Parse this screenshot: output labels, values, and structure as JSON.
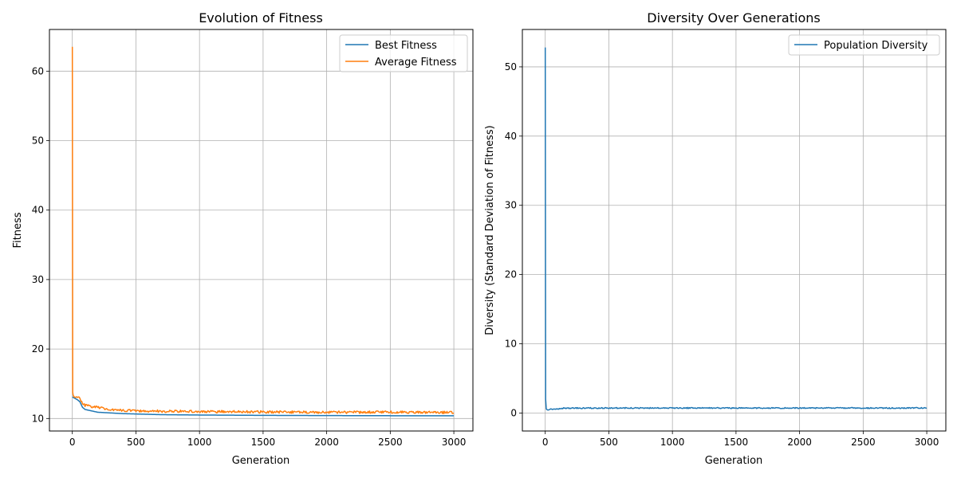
{
  "chart_data": [
    {
      "type": "line",
      "title": "Evolution of Fitness",
      "xlabel": "Generation",
      "ylabel": "Fitness",
      "xlim": [
        -180,
        3150
      ],
      "ylim": [
        8.2,
        66.0
      ],
      "xticks": [
        0,
        500,
        1000,
        1500,
        2000,
        2500,
        3000
      ],
      "yticks": [
        10,
        20,
        30,
        40,
        50,
        60
      ],
      "grid": true,
      "legend_position": "top-right",
      "series": [
        {
          "name": "Best Fitness",
          "color": "#1f77b4",
          "x": [
            0,
            20,
            40,
            60,
            80,
            100,
            150,
            200,
            250,
            300,
            400,
            500,
            700,
            1000,
            1500,
            2000,
            2500,
            3000
          ],
          "y": [
            13.1,
            12.9,
            12.7,
            12.4,
            11.6,
            11.3,
            11.1,
            10.9,
            10.85,
            10.8,
            10.7,
            10.65,
            10.55,
            10.5,
            10.45,
            10.42,
            10.4,
            10.4
          ]
        },
        {
          "name": "Average Fitness",
          "color": "#ff7f0e",
          "x": [
            0,
            3,
            6,
            20,
            40,
            60,
            80,
            100,
            150,
            200,
            250,
            300,
            400,
            500,
            700,
            1000,
            1500,
            2000,
            2500,
            3000
          ],
          "y": [
            63.5,
            13.8,
            13.4,
            13.2,
            13.0,
            12.9,
            12.1,
            11.9,
            11.7,
            11.6,
            11.4,
            11.3,
            11.2,
            11.1,
            11.05,
            11.0,
            10.95,
            10.9,
            10.9,
            10.85
          ],
          "noise": 0.18
        }
      ]
    },
    {
      "type": "line",
      "title": "Diversity Over Generations",
      "xlabel": "Generation",
      "ylabel": "Diversity (Standard Deviation of Fitness)",
      "xlim": [
        -180,
        3150
      ],
      "ylim": [
        -2.6,
        55.4
      ],
      "xticks": [
        0,
        500,
        1000,
        1500,
        2000,
        2500,
        3000
      ],
      "yticks": [
        0,
        10,
        20,
        30,
        40,
        50
      ],
      "grid": true,
      "legend_position": "top-right",
      "series": [
        {
          "name": "Population Diversity",
          "color": "#1f77b4",
          "x": [
            0,
            3,
            8,
            20,
            50,
            100,
            150,
            200,
            500,
            1000,
            1500,
            2000,
            2500,
            3000
          ],
          "y": [
            52.8,
            2.0,
            0.6,
            0.5,
            0.55,
            0.6,
            0.7,
            0.7,
            0.72,
            0.72,
            0.72,
            0.72,
            0.72,
            0.72
          ],
          "noise": 0.08
        }
      ]
    }
  ]
}
